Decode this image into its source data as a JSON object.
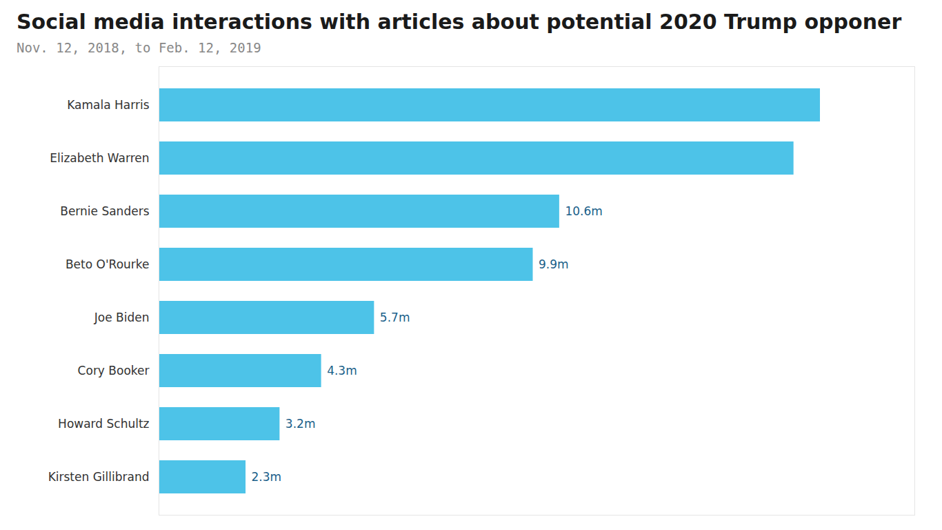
{
  "chart_data": {
    "type": "bar",
    "title": "Social media interactions with articles about potential 2020 Trump opponer",
    "subtitle": "Nov. 12, 2018, to Feb. 12, 2019",
    "orientation": "horizontal",
    "categories": [
      "Kamala Harris",
      "Elizabeth Warren",
      "Bernie Sanders",
      "Beto O'Rourke",
      "Joe Biden",
      "Cory Booker",
      "Howard Schultz",
      "Kirsten Gillibrand"
    ],
    "values": [
      17.5,
      16.8,
      10.6,
      9.9,
      5.7,
      4.3,
      3.2,
      2.3
    ],
    "value_labels": [
      null,
      null,
      "10.6m",
      "9.9m",
      "5.7m",
      "4.3m",
      "3.2m",
      "2.3m"
    ],
    "data_labels": true,
    "color": "#4dc3e8",
    "xlim": [
      0,
      20.0
    ],
    "tick_labels": "y",
    "grid": false
  }
}
